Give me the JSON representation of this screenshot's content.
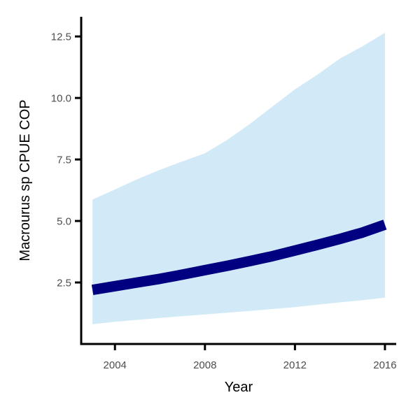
{
  "chart_data": {
    "type": "line",
    "title": "",
    "xlabel": "Year",
    "ylabel": "Macrourus sp  CPUE COP",
    "xlim": [
      2002.5,
      2016.5
    ],
    "ylim": [
      0.0,
      13.3
    ],
    "xticks": [
      2004,
      2008,
      2012,
      2016
    ],
    "xtick_labels": [
      "2004",
      "2008",
      "2012",
      "2016"
    ],
    "yticks": [
      2.5,
      5.0,
      7.5,
      10.0,
      12.5
    ],
    "ytick_labels": [
      "2.5",
      "5.0",
      "7.5",
      "10.0",
      "12.5"
    ],
    "grid": false,
    "legend": "none",
    "series": [
      {
        "x": [
          2003,
          2004,
          2005,
          2006,
          2007,
          2008,
          2009,
          2010,
          2011,
          2012,
          2013,
          2014,
          2015,
          2016
        ],
        "values": [
          2.2,
          2.35,
          2.5,
          2.65,
          2.82,
          3.0,
          3.18,
          3.37,
          3.57,
          3.8,
          4.03,
          4.27,
          4.53,
          4.85
        ],
        "lower": [
          0.8,
          0.9,
          0.98,
          1.06,
          1.13,
          1.2,
          1.27,
          1.34,
          1.42,
          1.5,
          1.6,
          1.69,
          1.78,
          1.88
        ],
        "upper": [
          5.87,
          6.28,
          6.7,
          7.08,
          7.42,
          7.75,
          8.3,
          8.95,
          9.65,
          10.35,
          10.95,
          11.6,
          12.1,
          12.65
        ]
      }
    ],
    "colors": {
      "line": "#000080",
      "band": "#d2eaf7",
      "axis": "#000000",
      "tick_label": "#4d4d4d"
    }
  }
}
